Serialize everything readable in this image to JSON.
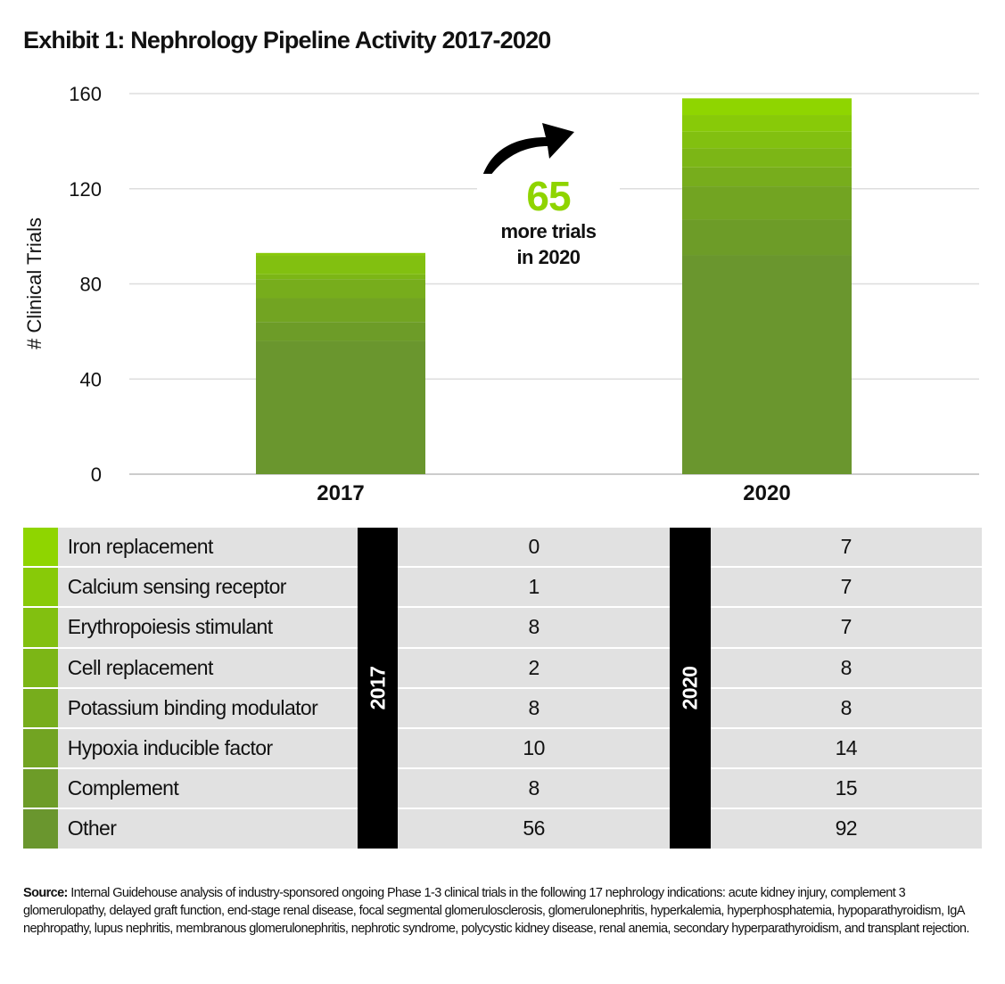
{
  "title": "Exhibit 1: Nephrology Pipeline Activity 2017-2020",
  "annotation": {
    "number": "65",
    "text_line1": "more trials",
    "text_line2": "in 2020"
  },
  "chart_data": {
    "type": "bar",
    "stacked": true,
    "title": "Exhibit 1: Nephrology Pipeline Activity 2017-2020",
    "xlabel": "",
    "ylabel": "# Clinical Trials",
    "ylim": [
      0,
      160
    ],
    "yticks": [
      0,
      40,
      80,
      120,
      160
    ],
    "grid": true,
    "categories": [
      "2017",
      "2020"
    ],
    "series": [
      {
        "name": "Other",
        "values": [
          56,
          92
        ],
        "color": "#6a962e"
      },
      {
        "name": "Complement",
        "values": [
          8,
          15
        ],
        "color": "#6d9c28"
      },
      {
        "name": "Hypoxia inducible factor",
        "values": [
          10,
          14
        ],
        "color": "#72a422"
      },
      {
        "name": "Potassium binding modulator",
        "values": [
          8,
          8
        ],
        "color": "#77ad1c"
      },
      {
        "name": "Cell replacement",
        "values": [
          2,
          8
        ],
        "color": "#7cb616"
      },
      {
        "name": "Erythropoiesis stimulant",
        "values": [
          8,
          7
        ],
        "color": "#82c010"
      },
      {
        "name": "Calcium sensing receptor",
        "values": [
          1,
          7
        ],
        "color": "#88ca08"
      },
      {
        "name": "Iron replacement",
        "values": [
          0,
          7
        ],
        "color": "#8fd500"
      }
    ]
  },
  "table": {
    "year_a": "2017",
    "year_b": "2020",
    "rows": [
      {
        "label": "Iron replacement",
        "a": "0",
        "b": "7",
        "color": "#8fd500"
      },
      {
        "label": "Calcium sensing receptor",
        "a": "1",
        "b": "7",
        "color": "#88ca08"
      },
      {
        "label": "Erythropoiesis stimulant",
        "a": "8",
        "b": "7",
        "color": "#82c010"
      },
      {
        "label": "Cell replacement",
        "a": "2",
        "b": "8",
        "color": "#7cb616"
      },
      {
        "label": "Potassium binding modulator",
        "a": "8",
        "b": "8",
        "color": "#77ad1c"
      },
      {
        "label": "Hypoxia inducible factor",
        "a": "10",
        "b": "14",
        "color": "#72a422"
      },
      {
        "label": "Complement",
        "a": "8",
        "b": "15",
        "color": "#6d9c28"
      },
      {
        "label": "Other",
        "a": "56",
        "b": "92",
        "color": "#6a962e"
      }
    ]
  },
  "source": {
    "label": "Source:",
    "text": "Internal Guidehouse analysis of industry-sponsored ongoing Phase 1-3 clinical trials in the following 17 nephrology indications: acute kidney injury, complement 3 glomerulopathy, delayed graft function, end-stage renal disease, focal segmental glomerulosclerosis, glomerulonephritis, hyperkalemia, hyperphosphatemia, hypoparathyroidism, IgA nephropathy, lupus nephritis, membranous glomerulonephritis, nephrotic syndrome, polycystic kidney disease, renal anemia, secondary hyperparathyroidism, and transplant rejection."
  }
}
